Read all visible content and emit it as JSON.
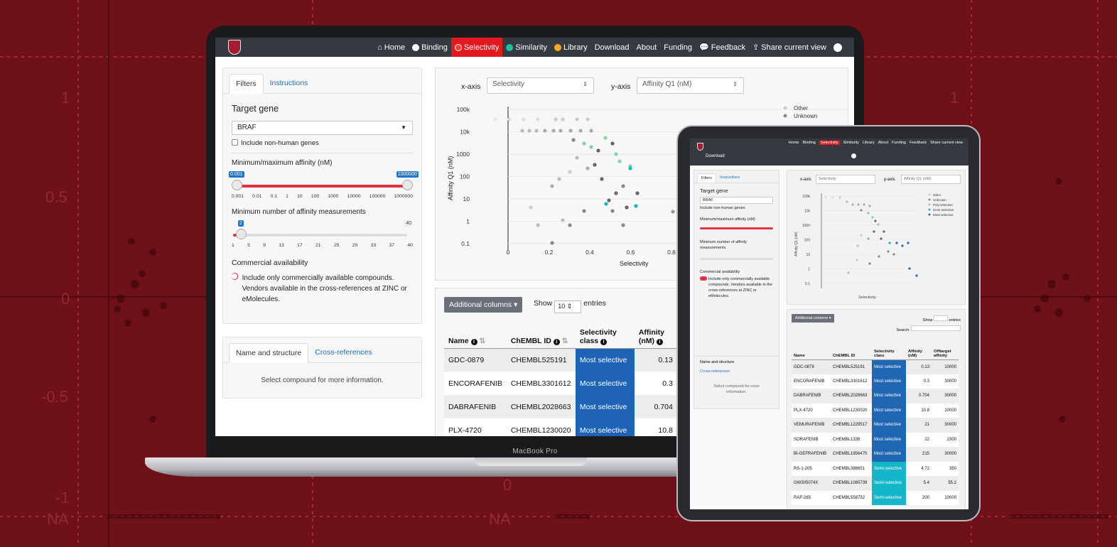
{
  "background": {
    "y_ticks": [
      "1",
      "0.5",
      "0",
      "-0.5",
      "-1",
      "NA"
    ],
    "x_na_label": "NA",
    "x_zero_label": "0"
  },
  "laptop": {
    "label": "MacBook Pro",
    "nav": {
      "items": [
        {
          "label": "Home",
          "icon": "home-icon"
        },
        {
          "label": "Binding",
          "icon": "white-circle-icon"
        },
        {
          "label": "Selectivity",
          "icon": "red-circle-icon",
          "active": true
        },
        {
          "label": "Similarity",
          "icon": "teal-circle-icon"
        },
        {
          "label": "Library",
          "icon": "orange-circle-icon"
        },
        {
          "label": "Download"
        },
        {
          "label": "About"
        },
        {
          "label": "Funding"
        },
        {
          "label": "Feedback",
          "icon": "comments-icon"
        },
        {
          "label": "Share current view",
          "icon": "share-icon"
        }
      ],
      "github_icon": "github-icon"
    },
    "sidebar": {
      "tabs": [
        "Filters",
        "Instructions"
      ],
      "target_gene_label": "Target gene",
      "target_gene_value": "BRAF",
      "include_non_human": "Include non-human genes",
      "affinity_label": "Minimum/maximum affinity (nM)",
      "affinity_min": "0.001",
      "affinity_max": "1000000",
      "affinity_ticks": [
        "0.001",
        "0.01",
        "0.1",
        "1",
        "10",
        "100",
        "1000",
        "10000",
        "100000",
        "1000000"
      ],
      "measurements_label": "Minimum number of affinity measurements",
      "measurements_value": "2",
      "measurements_max": "40",
      "measurements_ticks": [
        "1",
        "5",
        "9",
        "13",
        "17",
        "21",
        "25",
        "29",
        "33",
        "37",
        "40"
      ],
      "commercial_label": "Commercial availability",
      "commercial_text": "Include only commercially available compounds. Vendors available in the cross-references at ZINC or eMolecules.",
      "compound_tabs": [
        "Name and structure",
        "Cross-references"
      ],
      "compound_placeholder": "Select compound for more information."
    },
    "plot": {
      "x_axis_label": "x-axis",
      "x_axis_value": "Selectivity",
      "y_axis_label": "y-axis",
      "y_axis_value": "Affinity Q1 (nM)",
      "legend": [
        "Other",
        "Unknown"
      ]
    },
    "table": {
      "additional_columns": "Additional columns",
      "show": "Show",
      "entries_value": "10",
      "entries": "entries",
      "headers": [
        "Name",
        "ChEMBL ID",
        "Selectivity class",
        "Affinity (nM)"
      ],
      "rows": [
        {
          "name": "GDC-0879",
          "chembl": "CHEMBL525191",
          "class": "Most selective",
          "affinity": "0.13"
        },
        {
          "name": "ENCORAFENIB",
          "chembl": "CHEMBL3301612",
          "class": "Most selective",
          "affinity": "0.3"
        },
        {
          "name": "DABRAFENIB",
          "chembl": "CHEMBL2028663",
          "class": "Most selective",
          "affinity": "0.704"
        },
        {
          "name": "PLX-4720",
          "chembl": "CHEMBL1230020",
          "class": "Most selective",
          "affinity": "10.8"
        }
      ]
    }
  },
  "tablet": {
    "nav": [
      "Home",
      "Binding",
      "Selectivity",
      "Similarity",
      "Library",
      "About",
      "Funding",
      "Feedback",
      "Share current view"
    ],
    "download": "Download",
    "tabs": [
      "Filters",
      "Instructions"
    ],
    "target_gene_label": "Target gene",
    "target_gene_value": "BRAF",
    "include_non_human": "Include non-human genes",
    "affinity_label": "Minimum/maximum affinity (nM)",
    "measurements_label": "Minimum number of affinity measurements",
    "commercial_label": "Commercial availability",
    "commercial_text": "Include only commercially available compounds. Vendors available in the cross-references at ZINC or eMolecules.",
    "compound_tab1": "Name and structure",
    "compound_tab2": "Cross-references",
    "compound_placeholder": "Select compound for more information.",
    "x_axis_label": "x-axis",
    "x_axis_value": "Selectivity",
    "y_axis_label": "y-axis",
    "y_axis_value": "Affinity Q1 (nM)",
    "legend": [
      "Other",
      "Unknown",
      "Poly-selective",
      "Semi-selective",
      "Most selective"
    ],
    "additional_columns": "Additional columns",
    "show": "Show",
    "entries": "entries",
    "search": "Search:",
    "headers": [
      "Name",
      "ChEMBL ID",
      "Selectivity class",
      "Affinity (nM)",
      "Offtarget affinity"
    ],
    "rows": [
      {
        "name": "GDC-0879",
        "chembl": "CHEMBL525191",
        "class": "Most selective",
        "affinity": "0.13",
        "off": "10000"
      },
      {
        "name": "ENCORAFENIB",
        "chembl": "CHEMBL3301612",
        "class": "Most selective",
        "affinity": "0.3",
        "off": "30000"
      },
      {
        "name": "DABRAFENIB",
        "chembl": "CHEMBL2028663",
        "class": "Most selective",
        "affinity": "0.704",
        "off": "30000"
      },
      {
        "name": "PLX-4720",
        "chembl": "CHEMBL1230020",
        "class": "Most selective",
        "affinity": "10.8",
        "off": "10000"
      },
      {
        "name": "VEMURAFENIB",
        "chembl": "CHEMBL1229517",
        "class": "Most selective",
        "affinity": "21",
        "off": "30000"
      },
      {
        "name": "SORAFENIB",
        "chembl": "CHEMBL1336",
        "class": "Most selective",
        "affinity": "22",
        "off": "2300"
      },
      {
        "name": "BI-GEFRAFENIB",
        "chembl": "CHEMBL1956470",
        "class": "Most selective",
        "affinity": "215",
        "off": "30000"
      },
      {
        "name": "RS-1-205",
        "chembl": "CHEMBL388651",
        "class": "Semi-selective",
        "affinity": "4.72",
        "off": "350"
      },
      {
        "name": "GW305074X",
        "chembl": "CHEMBL1080739",
        "class": "Semi-selective",
        "affinity": "5.4",
        "off": "55.2"
      },
      {
        "name": "RAF-265",
        "chembl": "CHEMBL558752",
        "class": "Semi-selective",
        "affinity": "200",
        "off": "10000"
      }
    ]
  },
  "colors": {
    "background": "#6e1119",
    "nav": "#343a40",
    "active": "#e3191f",
    "most_selective": "#1e63b6",
    "semi_selective": "#14b7c9",
    "poly_selective": "#7fd6a7",
    "slider": "#e33340"
  }
}
